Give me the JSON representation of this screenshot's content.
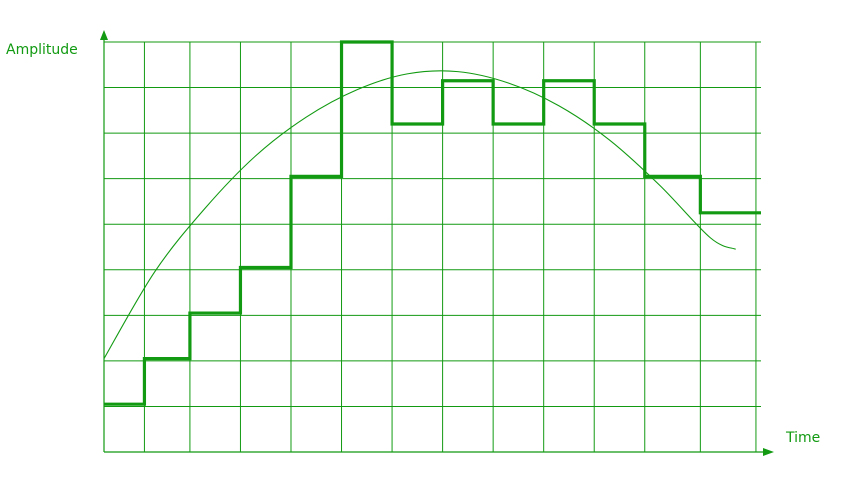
{
  "colors": {
    "accent": "#129a12",
    "background": "#ffffff"
  },
  "chart_data": {
    "type": "line",
    "title": "",
    "xlabel": "Time",
    "ylabel": "Amplitude",
    "xlim": [
      0,
      13
    ],
    "ylim": [
      0,
      9
    ],
    "grid": true,
    "x_gridlines": [
      0,
      0.8,
      1.7,
      2.7,
      3.7,
      4.7,
      5.7,
      6.7,
      7.7,
      8.7,
      9.7,
      10.7,
      11.8,
      12.9
    ],
    "legend": "none",
    "series": [
      {
        "style": "step",
        "step_edges": [
          0,
          0.8,
          1.7,
          2.7,
          3.7,
          4.7,
          5.7,
          6.7,
          7.7,
          8.7,
          9.7,
          10.7,
          11.8,
          13
        ],
        "values": [
          1.05,
          2.05,
          3.05,
          4.05,
          6.05,
          9.0,
          7.2,
          8.15,
          7.2,
          8.15,
          7.2,
          6.05,
          5.25
        ]
      },
      {
        "style": "curve",
        "x": [
          0,
          1,
          2,
          3,
          4,
          5,
          6,
          7,
          8,
          9,
          10,
          11,
          12,
          12.5
        ],
        "y": [
          2.05,
          3.95,
          5.35,
          6.5,
          7.35,
          7.95,
          8.3,
          8.35,
          8.1,
          7.6,
          6.85,
          5.85,
          4.7,
          4.45
        ]
      }
    ]
  }
}
